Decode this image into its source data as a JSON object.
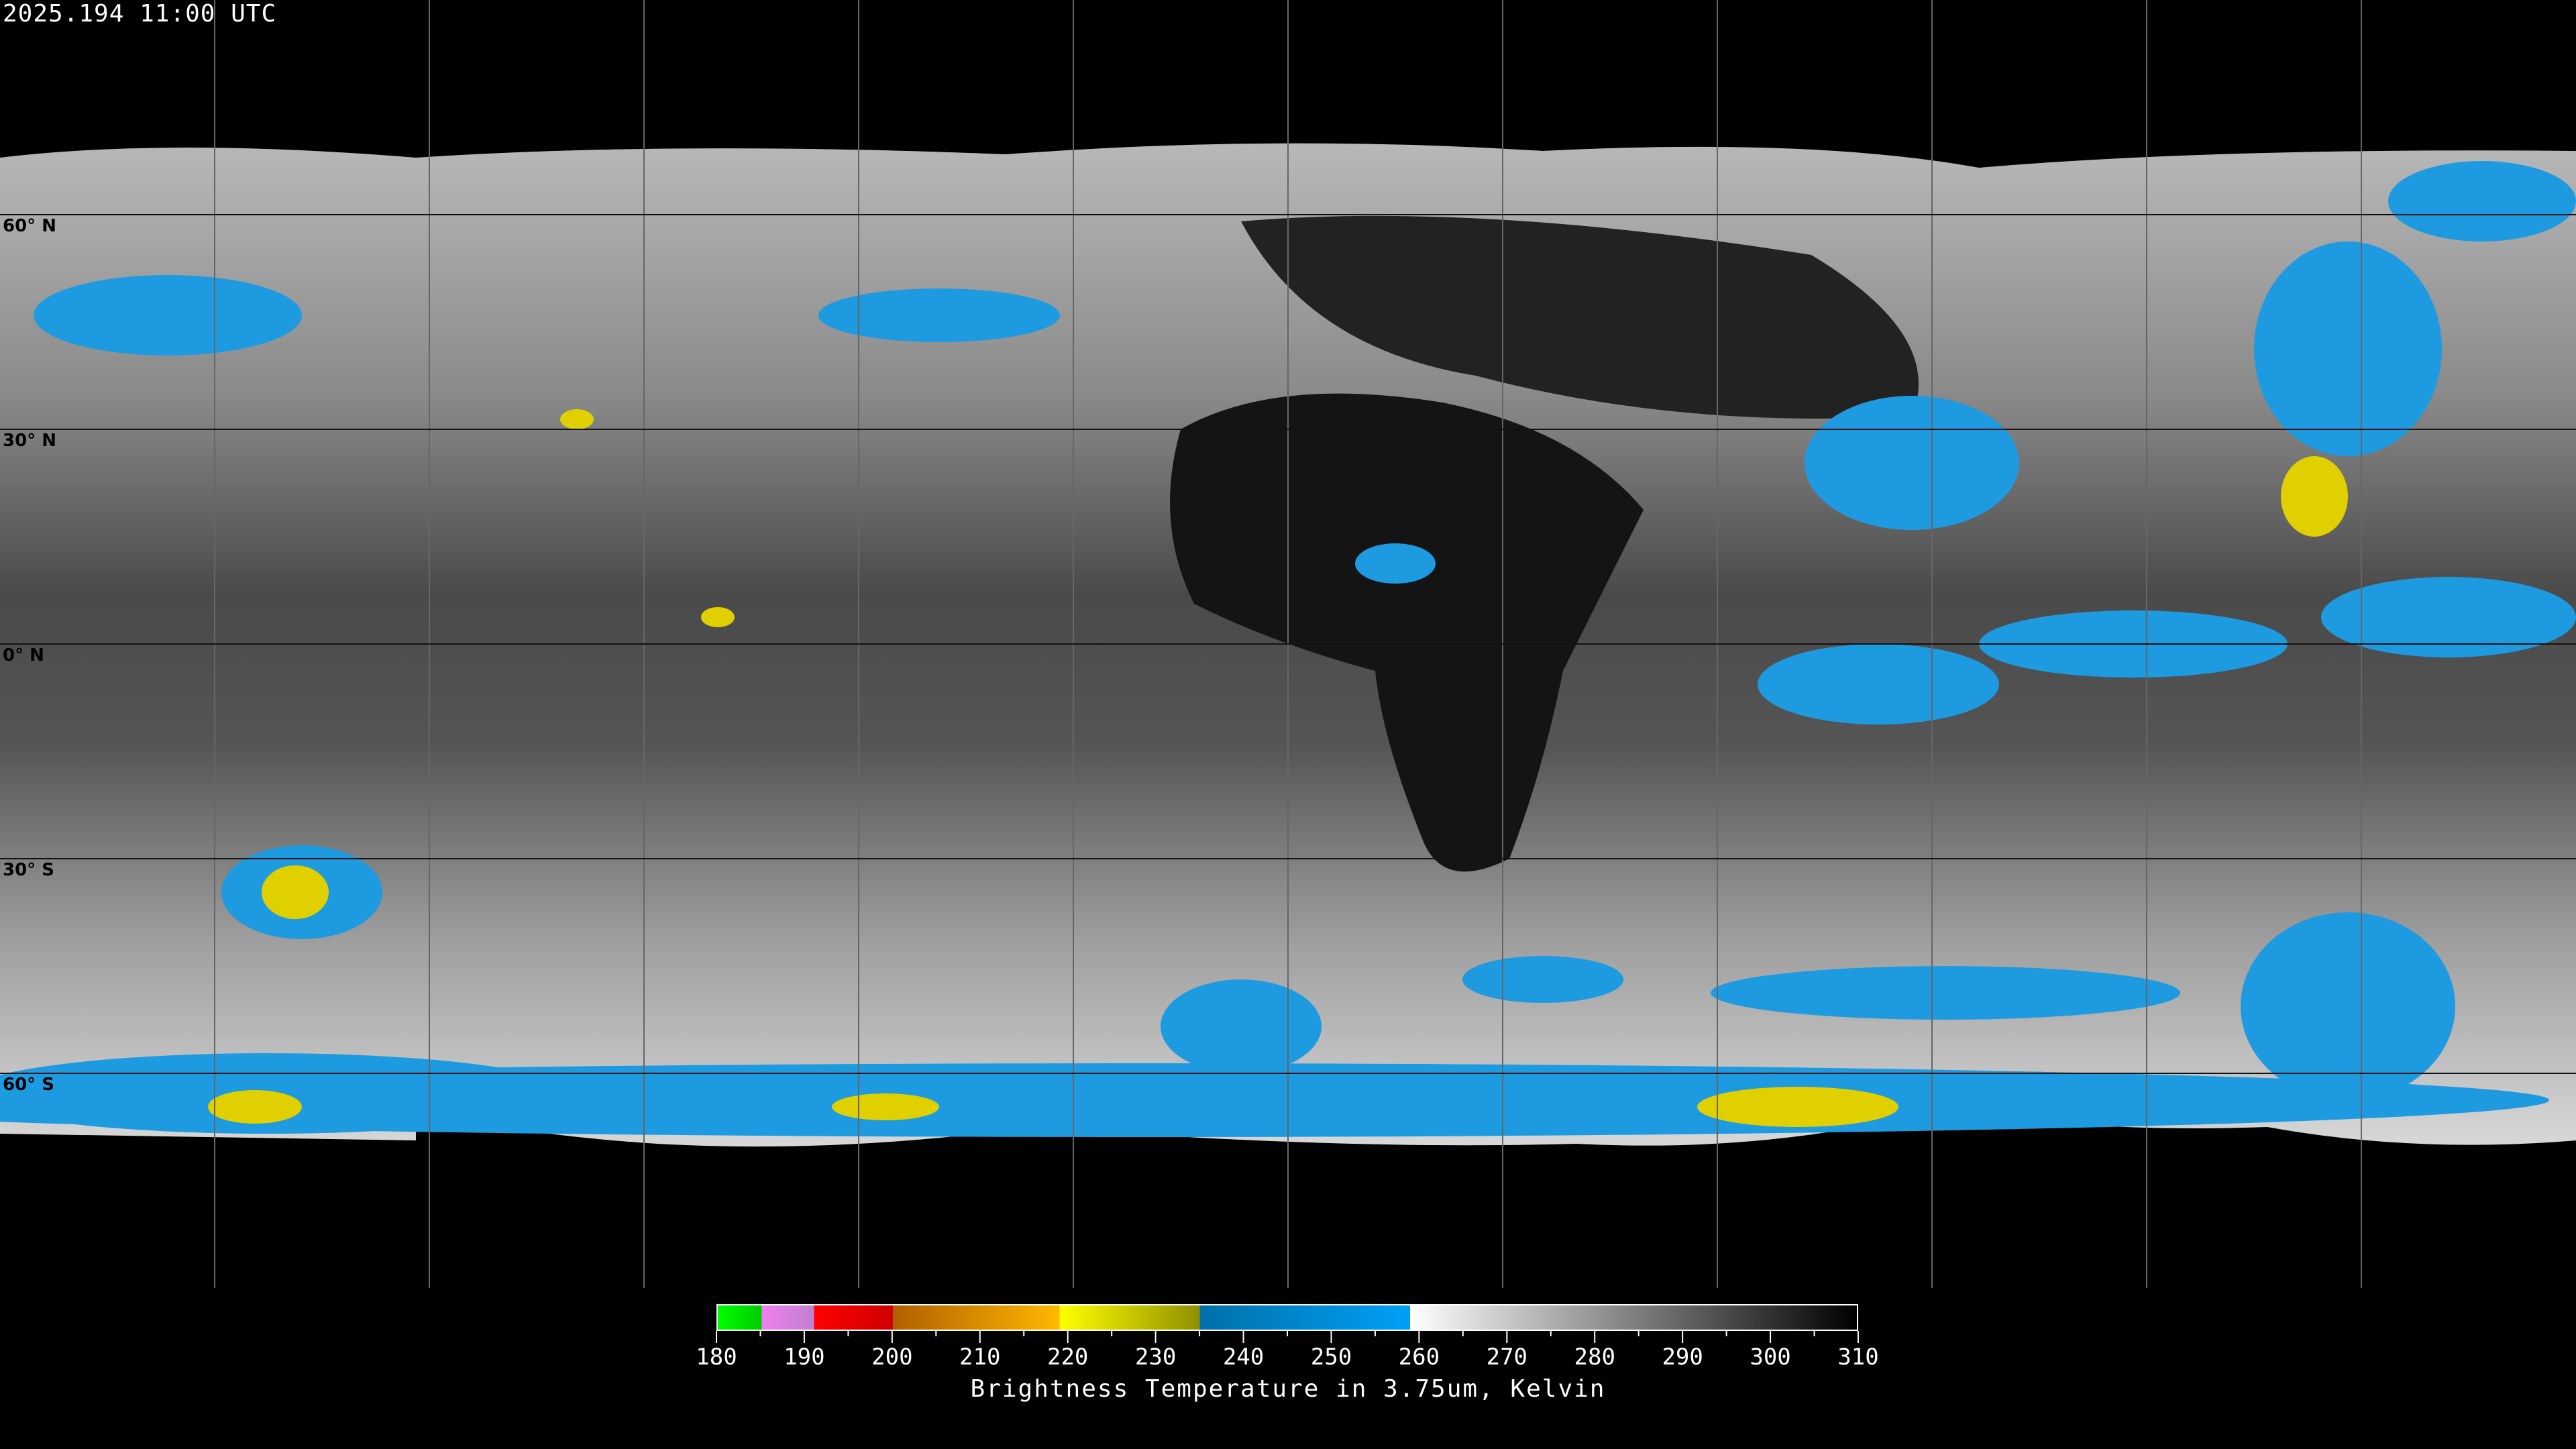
{
  "header": {
    "timestamp": "2025.194 11:00 UTC"
  },
  "map": {
    "projection": "equirectangular",
    "lon_range": [
      -180,
      180
    ],
    "lat_range": [
      -90,
      90
    ],
    "grid_spacing_deg": 30,
    "lat_labels": [
      "60° N",
      "30° N",
      "0° N",
      "30° S",
      "60° S"
    ]
  },
  "colorbar": {
    "title": "Brightness Temperature in 3.75um, Kelvin",
    "range": [
      180,
      310
    ],
    "tick_labels": [
      "180",
      "190",
      "200",
      "210",
      "220",
      "230",
      "240",
      "250",
      "260",
      "270",
      "280",
      "290",
      "300",
      "310"
    ],
    "segments": [
      {
        "from": 180,
        "to": 185,
        "colors": [
          "#00ff00",
          "#00cc00"
        ]
      },
      {
        "from": 185,
        "to": 191,
        "colors": [
          "#f080f0",
          "#c080d0"
        ]
      },
      {
        "from": 191,
        "to": 200,
        "colors": [
          "#ff0000",
          "#d00000"
        ]
      },
      {
        "from": 200,
        "to": 219,
        "colors": [
          "#b06000",
          "#ffb800"
        ]
      },
      {
        "from": 219,
        "to": 235,
        "colors": [
          "#ffff00",
          "#909000"
        ]
      },
      {
        "from": 235,
        "to": 259,
        "colors": [
          "#0070a8",
          "#00a0f8"
        ]
      },
      {
        "from": 259,
        "to": 310,
        "colors": [
          "#ffffff",
          "#000000"
        ]
      }
    ]
  }
}
